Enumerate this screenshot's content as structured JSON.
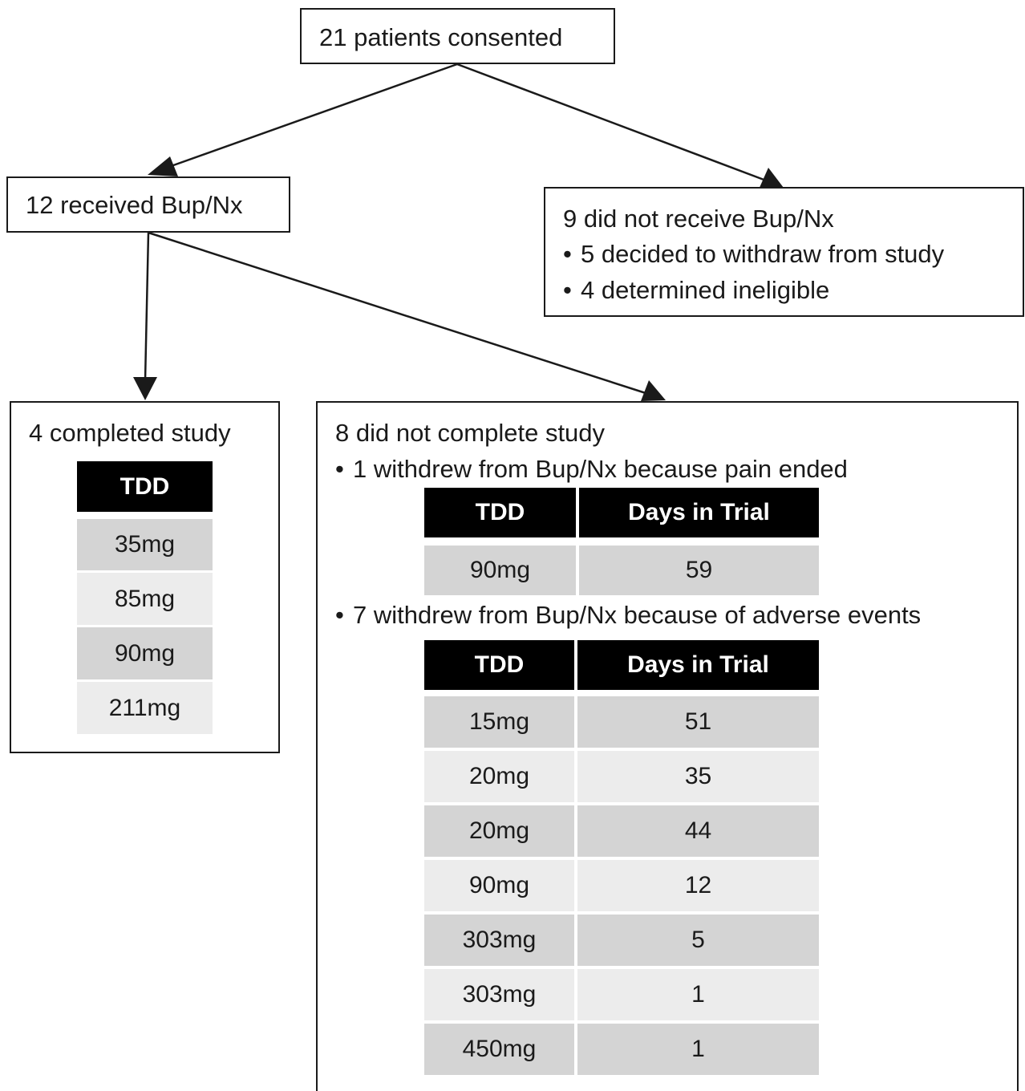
{
  "top": {
    "label": "21 patients consented"
  },
  "received": {
    "label": "12 received Bup/Nx"
  },
  "not_received": {
    "label": "9 did not receive Bup/Nx",
    "bullets": [
      "5 decided to withdraw from study",
      "4 determined ineligible"
    ]
  },
  "completed": {
    "label": "4 completed study",
    "table_header": "TDD",
    "rows": [
      "35mg",
      "85mg",
      "90mg",
      "211mg"
    ]
  },
  "not_completed": {
    "label": "8 did not complete study",
    "group1": {
      "label": "1 withdrew from Bup/Nx because pain ended",
      "headers": [
        "TDD",
        "Days in Trial"
      ],
      "rows": [
        [
          "90mg",
          "59"
        ]
      ]
    },
    "group2": {
      "label": "7 withdrew from Bup/Nx because of adverse events",
      "headers": [
        "TDD",
        "Days in Trial"
      ],
      "rows": [
        [
          "15mg",
          "51"
        ],
        [
          "20mg",
          "35"
        ],
        [
          "20mg",
          "44"
        ],
        [
          "90mg",
          "12"
        ],
        [
          "303mg",
          "5"
        ],
        [
          "303mg",
          "1"
        ],
        [
          "450mg",
          "1"
        ]
      ]
    }
  },
  "colors": {
    "header_bg": "#000000",
    "row_dark": "#d4d4d4",
    "row_light": "#ececec"
  }
}
